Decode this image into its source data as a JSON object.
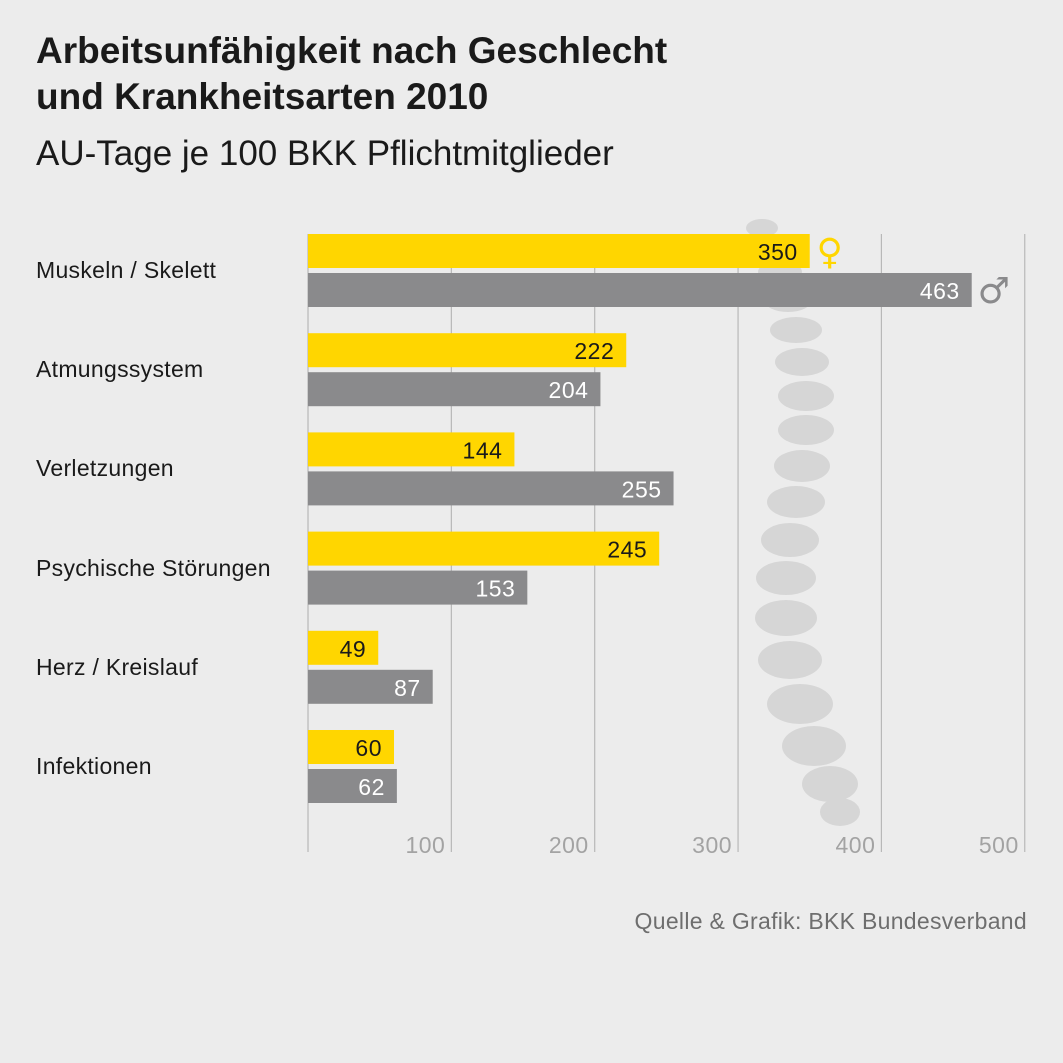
{
  "title_line1": "Arbeitsunfähigkeit nach Geschlecht",
  "title_line2": "und Krankheitsarten 2010",
  "subtitle": "AU-Tage je 100 BKK Pflichtmitglieder",
  "source": "Quelle & Grafik: BKK Bundesverband",
  "colors": {
    "female": "#ffd600",
    "male": "#8a8a8c",
    "grid": "#b8b8b8",
    "tick_text": "#a3a3a3",
    "spine": "#d6d6d6"
  },
  "symbols": {
    "female": "♀",
    "male": "♂"
  },
  "chart_data": {
    "type": "bar",
    "orientation": "horizontal",
    "categories": [
      "Muskeln / Skelett",
      "Atmungssystem",
      "Verletzungen",
      "Psychische Störungen",
      "Herz / Kreislauf",
      "Infektionen"
    ],
    "series": [
      {
        "key": "female",
        "values": [
          350,
          222,
          144,
          245,
          49,
          60
        ]
      },
      {
        "key": "male",
        "values": [
          463,
          204,
          255,
          153,
          87,
          62
        ]
      }
    ],
    "xlim": [
      0,
      500
    ],
    "xticks": [
      100,
      200,
      300,
      400,
      500
    ],
    "grid": true,
    "data_labels": true
  }
}
